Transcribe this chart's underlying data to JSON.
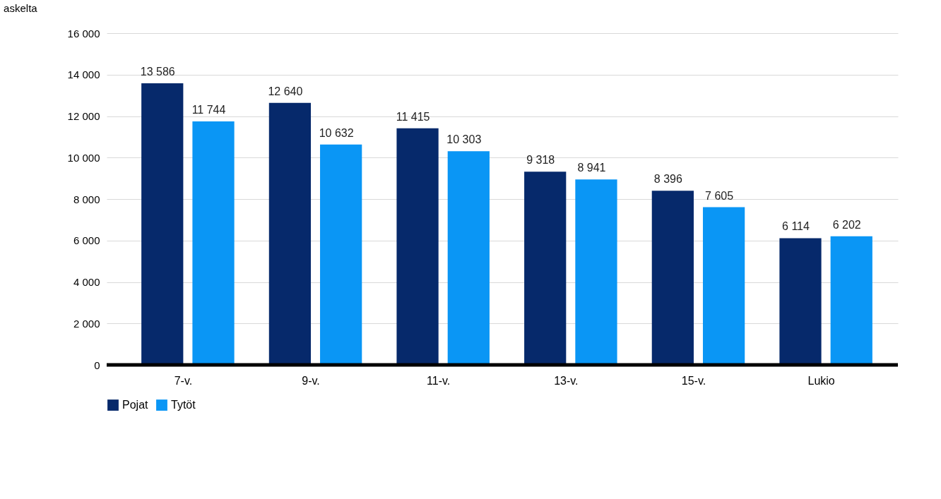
{
  "chart_data": {
    "type": "bar",
    "ylabel": "askelta",
    "categories": [
      "7-v.",
      "9-v.",
      "11-v.",
      "13-v.",
      "15-v.",
      "Lukio"
    ],
    "series": [
      {
        "name": "Pojat",
        "color": "#06296b",
        "values": [
          13586,
          12640,
          11415,
          9318,
          8396,
          6114
        ],
        "value_labels": [
          "13 586",
          "12 640",
          "11 415",
          "9 318",
          "8 396",
          "6 114"
        ]
      },
      {
        "name": "Tytöt",
        "color": "#0a96f5",
        "values": [
          11744,
          10632,
          10303,
          8941,
          7605,
          6202
        ],
        "value_labels": [
          "11 744",
          "10 632",
          "10 303",
          "8 941",
          "7 605",
          "6 202"
        ]
      }
    ],
    "ylim": [
      0,
      16000
    ],
    "yticks": [
      0,
      {
        "value": 2000,
        "label": "2 000"
      },
      {
        "value": 4000,
        "label": "4 000"
      },
      {
        "value": 6000,
        "label": "6 000"
      },
      {
        "value": 8000,
        "label": "8 000"
      },
      {
        "value": 10000,
        "label": "10 000"
      },
      {
        "value": 12000,
        "label": "12 000"
      },
      {
        "value": 14000,
        "label": "14 000"
      },
      {
        "value": 16000,
        "label": "16 000"
      }
    ],
    "grid": "y",
    "legend": "bottom"
  }
}
